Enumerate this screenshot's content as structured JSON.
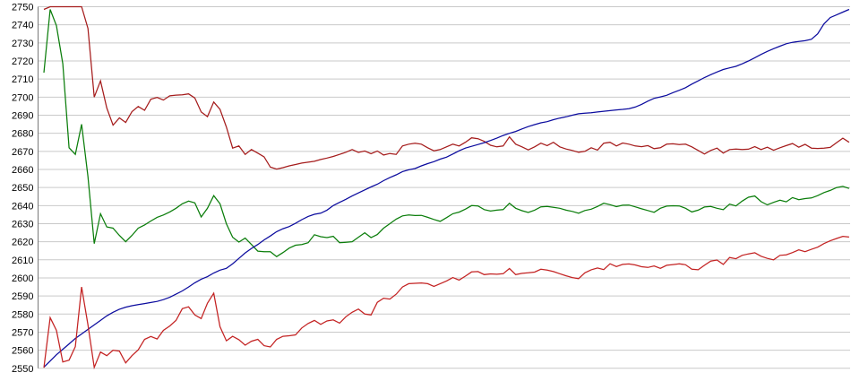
{
  "page": {
    "background": "#ffffff",
    "title": ""
  },
  "y_axis": {
    "min": 2550,
    "max": 2750,
    "step": 10,
    "labels": [
      "2750",
      "2740",
      "2730",
      "2720",
      "2710",
      "2700",
      "2690",
      "2680",
      "2670",
      "2660",
      "2650",
      "2640",
      "2630",
      "2620",
      "2610",
      "2600",
      "2590",
      "2580",
      "2570",
      "2560",
      "2550"
    ],
    "label_color": "#000000",
    "grid_color": "#c9c9c9",
    "axis_line_color": "#7a7a7a"
  },
  "chart_data": {
    "type": "line",
    "title": "",
    "xlabel": "",
    "ylabel": "",
    "ylim": [
      2550,
      2750
    ],
    "grid": true,
    "legend_position": "none",
    "x_axis_labels": "none visible",
    "num_points_per_series": 129,
    "series": [
      {
        "name": "upper-dark-red",
        "color": "#a51c1c",
        "values": [
          2748.5,
          2750,
          2750,
          2750,
          2750,
          2750,
          2750,
          2738,
          2700,
          2709,
          2694,
          2684.5,
          2688.5,
          2686,
          2692,
          2694.8,
          2692.7,
          2698.8,
          2699.8,
          2698.4,
          2700.7,
          2701.1,
          2701.3,
          2701.8,
          2699.5,
          2691.8,
          2689.2,
          2697.3,
          2693.2,
          2683.5,
          2671.8,
          2673,
          2668.3,
          2671,
          2669,
          2667,
          2661.3,
          2660.2,
          2661,
          2662,
          2662.7,
          2663.5,
          2664,
          2664.5,
          2665.5,
          2666.3,
          2667.2,
          2668.3,
          2669.5,
          2671,
          2669.4,
          2670.2,
          2668.7,
          2670.2,
          2668,
          2668.8,
          2668.3,
          2673,
          2674,
          2674.5,
          2674,
          2672,
          2670.3,
          2671,
          2672.5,
          2674,
          2673,
          2675,
          2677.5,
          2677,
          2675.5,
          2673.4,
          2672.5,
          2673,
          2678,
          2674,
          2672.5,
          2670.8,
          2672.5,
          2674.5,
          2673.2,
          2675,
          2672.5,
          2671.3,
          2670.5,
          2669.5,
          2670,
          2672,
          2670.7,
          2674.5,
          2675,
          2673,
          2674.6,
          2674,
          2673,
          2672.6,
          2673.2,
          2671.5,
          2672,
          2674,
          2674.2,
          2673.8,
          2674,
          2672.5,
          2670.5,
          2668.5,
          2670.5,
          2671.8,
          2669,
          2671,
          2671.3,
          2671,
          2671.2,
          2672.6,
          2671,
          2672.3,
          2670.6,
          2672,
          2673.2,
          2674.3,
          2672.3,
          2673.9,
          2671.8,
          2671.6,
          2671.8,
          2672.2,
          2674.8,
          2677.3,
          2675
        ]
      },
      {
        "name": "green",
        "color": "#0a7d0a",
        "values": [
          2713.5,
          2748.5,
          2739.5,
          2718.5,
          2672,
          2668.3,
          2685,
          2656,
          2619,
          2635.5,
          2628.2,
          2627.5,
          2623.5,
          2620,
          2623.5,
          2627.5,
          2629.3,
          2631.5,
          2633.5,
          2634.8,
          2636.5,
          2638.5,
          2641,
          2642.5,
          2641.5,
          2633.7,
          2638.5,
          2645.5,
          2641,
          2630,
          2622.5,
          2619.8,
          2622,
          2618.5,
          2614.8,
          2614.5,
          2614.5,
          2611.8,
          2614,
          2616.5,
          2618.1,
          2618.5,
          2619.5,
          2623.9,
          2622.8,
          2622.3,
          2623,
          2619.5,
          2619.7,
          2620,
          2622.5,
          2625,
          2622.3,
          2624,
          2627.5,
          2630,
          2632.5,
          2634.3,
          2634.8,
          2634.5,
          2634.6,
          2633.5,
          2632.3,
          2631.3,
          2633.3,
          2635.5,
          2636.4,
          2638,
          2640,
          2639.8,
          2637.8,
          2637,
          2637.5,
          2637.8,
          2641.3,
          2638.5,
          2637.2,
          2636.2,
          2637.5,
          2639.3,
          2639.5,
          2639,
          2638.5,
          2637.5,
          2636.8,
          2635.8,
          2637.3,
          2638,
          2639.5,
          2641.3,
          2640.5,
          2639.4,
          2640.2,
          2640.3,
          2639.3,
          2638.2,
          2637.3,
          2636.3,
          2638.5,
          2639.7,
          2639.9,
          2639.8,
          2638.5,
          2636.5,
          2637.5,
          2639.2,
          2639.5,
          2638.5,
          2637.8,
          2640.8,
          2639.8,
          2642.5,
          2644.6,
          2645.3,
          2642.2,
          2640.4,
          2641.8,
          2643,
          2642.1,
          2644.4,
          2643.3,
          2643.9,
          2644.2,
          2645.5,
          2647.2,
          2648.4,
          2650,
          2650.6,
          2649.5
        ]
      },
      {
        "name": "blue",
        "color": "#0b0b9e",
        "values": [
          2550.6,
          2554,
          2557.5,
          2560.5,
          2563.5,
          2566.5,
          2569,
          2571.5,
          2574,
          2576.5,
          2579,
          2581,
          2582.7,
          2583.8,
          2584.6,
          2585.2,
          2585.8,
          2586.4,
          2587,
          2588,
          2589.3,
          2591,
          2592.8,
          2595,
          2597.3,
          2599.3,
          2600.7,
          2602.7,
          2604.3,
          2605.3,
          2607.8,
          2610.8,
          2613.8,
          2616.3,
          2618.5,
          2621,
          2623.2,
          2625.6,
          2627.2,
          2628.4,
          2630.2,
          2632.2,
          2634,
          2635.2,
          2635.8,
          2637.5,
          2640,
          2641.8,
          2643.5,
          2645.3,
          2647,
          2648.7,
          2650.3,
          2651.8,
          2653.8,
          2655.5,
          2657,
          2658.8,
          2659.8,
          2660.5,
          2662,
          2663.2,
          2664.3,
          2665.7,
          2666.8,
          2668.5,
          2670.3,
          2671.8,
          2672.8,
          2673.8,
          2674.8,
          2676,
          2677.3,
          2678.8,
          2680,
          2681,
          2682.4,
          2683.7,
          2684.8,
          2685.8,
          2686.4,
          2687.5,
          2688.4,
          2689.1,
          2690,
          2690.8,
          2691.1,
          2691.4,
          2691.8,
          2692.2,
          2692.5,
          2692.9,
          2693.2,
          2693.6,
          2694.5,
          2696,
          2697.8,
          2699.3,
          2700.1,
          2701,
          2702.5,
          2703.8,
          2705.2,
          2707.2,
          2709,
          2710.8,
          2712.4,
          2713.9,
          2715.3,
          2716.2,
          2717,
          2718.4,
          2720,
          2721.8,
          2723.6,
          2725.3,
          2726.8,
          2728.2,
          2729.5,
          2730.3,
          2730.8,
          2731.2,
          2732,
          2735,
          2740.5,
          2744,
          2745.5,
          2747,
          2748.5
        ]
      },
      {
        "name": "lower-red",
        "color": "#c32222",
        "values": [
          2550.3,
          2578,
          2571,
          2553.5,
          2554.5,
          2562,
          2595,
          2574,
          2550.5,
          2559,
          2557,
          2560,
          2559.5,
          2553,
          2557,
          2560.2,
          2566,
          2567.6,
          2566.2,
          2571,
          2573.4,
          2576.5,
          2583,
          2584,
          2579.5,
          2577.5,
          2586,
          2591.5,
          2573,
          2565.2,
          2567.7,
          2565.8,
          2562.8,
          2565,
          2566,
          2562.5,
          2561.8,
          2566,
          2567.7,
          2568,
          2568.5,
          2572.3,
          2574.8,
          2576.5,
          2574.3,
          2576.2,
          2576.8,
          2575,
          2578.5,
          2581,
          2582.8,
          2580,
          2579.5,
          2586.5,
          2588.8,
          2588.3,
          2591,
          2595,
          2596.8,
          2597,
          2597.2,
          2596.8,
          2595.3,
          2596.8,
          2598.3,
          2600.2,
          2598.8,
          2601,
          2603.3,
          2603.5,
          2601.8,
          2602.2,
          2602,
          2602.3,
          2605.2,
          2601.8,
          2602.5,
          2602.8,
          2603.2,
          2604.8,
          2604.3,
          2603.5,
          2602.3,
          2601.2,
          2600.2,
          2599.6,
          2602.8,
          2604.5,
          2605.5,
          2604.6,
          2607.8,
          2606.3,
          2607.5,
          2607.7,
          2607.2,
          2606.2,
          2605.8,
          2606.6,
          2605.3,
          2607,
          2607.4,
          2607.8,
          2607.3,
          2604.8,
          2604.5,
          2607,
          2609.3,
          2609.9,
          2607.5,
          2611.3,
          2610.6,
          2612.5,
          2613.3,
          2613.9,
          2612,
          2610.8,
          2610,
          2612.5,
          2612.8,
          2614,
          2615.5,
          2614.5,
          2615.8,
          2617,
          2619,
          2620.5,
          2621.8,
          2623,
          2622.6
        ]
      }
    ]
  }
}
